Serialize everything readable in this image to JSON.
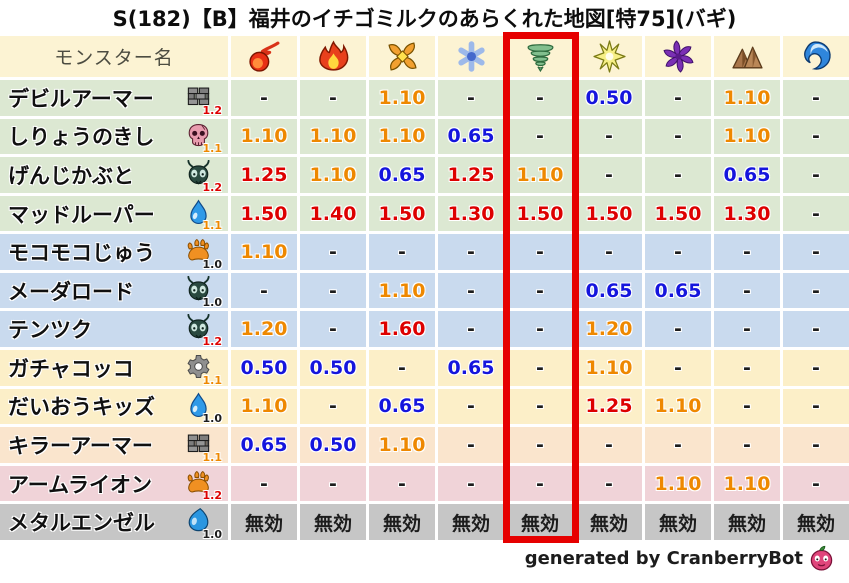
{
  "title": "S(182)【B】福井のイチゴミルクのあらくれた地図[特75](バギ)",
  "header": {
    "name_column": "モンスター名",
    "element_icons": [
      "fireball-icon",
      "flame-icon",
      "explosion-icon",
      "snowflake-icon",
      "tornado-icon",
      "spark-icon",
      "pinwheel-icon",
      "mountain-icon",
      "wave-icon"
    ],
    "highlight_column_index": 4,
    "highlight_color": "#e60000"
  },
  "palette": {
    "black": "#1c1c1c",
    "orange": "#ee8800",
    "red": "#dd0000",
    "blue": "#1515dd"
  },
  "row_backgrounds": {
    "header": "#fcf3d3",
    "green": "#dce8d2",
    "blue": "#c9daee",
    "cream": "#fcefc8",
    "peach": "#fae5cd",
    "pink": "#f0d3d8",
    "gray": "#c6c6c6"
  },
  "rows": [
    {
      "name": "デビルアーマー",
      "family_icon": "brick-icon",
      "rank": "1.2",
      "rank_color": "red",
      "bg": "green",
      "values": [
        "-",
        "-",
        "1.10",
        "-",
        "-",
        "0.50",
        "-",
        "1.10",
        "-"
      ],
      "value_colors": [
        "black",
        "black",
        "orange",
        "black",
        "black",
        "blue",
        "black",
        "orange",
        "black"
      ]
    },
    {
      "name": "しりょうのきし",
      "family_icon": "skull-icon",
      "rank": "1.1",
      "rank_color": "orange",
      "bg": "green",
      "values": [
        "1.10",
        "1.10",
        "1.10",
        "0.65",
        "-",
        "-",
        "-",
        "1.10",
        "-"
      ],
      "value_colors": [
        "orange",
        "orange",
        "orange",
        "blue",
        "black",
        "black",
        "black",
        "orange",
        "black"
      ]
    },
    {
      "name": "げんじかぶと",
      "family_icon": "bug-icon",
      "rank": "1.2",
      "rank_color": "red",
      "bg": "green",
      "values": [
        "1.25",
        "1.10",
        "0.65",
        "1.25",
        "1.10",
        "-",
        "-",
        "0.65",
        "-"
      ],
      "value_colors": [
        "red",
        "orange",
        "blue",
        "red",
        "orange",
        "black",
        "black",
        "blue",
        "black"
      ]
    },
    {
      "name": "マッドルーパー",
      "family_icon": "drop-icon",
      "rank": "1.1",
      "rank_color": "orange",
      "bg": "green",
      "values": [
        "1.50",
        "1.40",
        "1.50",
        "1.30",
        "1.50",
        "1.50",
        "1.50",
        "1.30",
        "-"
      ],
      "value_colors": [
        "red",
        "red",
        "red",
        "red",
        "red",
        "red",
        "red",
        "red",
        "black"
      ]
    },
    {
      "name": "モコモコじゅう",
      "family_icon": "paw-icon",
      "rank": "1.0",
      "rank_color": "black",
      "bg": "blue",
      "values": [
        "1.10",
        "-",
        "-",
        "-",
        "-",
        "-",
        "-",
        "-",
        "-"
      ],
      "value_colors": [
        "orange",
        "black",
        "black",
        "black",
        "black",
        "black",
        "black",
        "black",
        "black"
      ]
    },
    {
      "name": "メーダロード",
      "family_icon": "bug-icon",
      "rank": "1.0",
      "rank_color": "black",
      "bg": "blue",
      "values": [
        "-",
        "-",
        "1.10",
        "-",
        "-",
        "0.65",
        "0.65",
        "-",
        "-"
      ],
      "value_colors": [
        "black",
        "black",
        "orange",
        "black",
        "black",
        "blue",
        "blue",
        "black",
        "black"
      ]
    },
    {
      "name": "テンツク",
      "family_icon": "bug-icon",
      "rank": "1.2",
      "rank_color": "red",
      "bg": "blue",
      "values": [
        "1.20",
        "-",
        "1.60",
        "-",
        "-",
        "1.20",
        "-",
        "-",
        "-"
      ],
      "value_colors": [
        "orange",
        "black",
        "red",
        "black",
        "black",
        "orange",
        "black",
        "black",
        "black"
      ]
    },
    {
      "name": "ガチャコッコ",
      "family_icon": "gear-icon",
      "rank": "1.1",
      "rank_color": "orange",
      "bg": "cream",
      "values": [
        "0.50",
        "0.50",
        "-",
        "0.65",
        "-",
        "1.10",
        "-",
        "-",
        "-"
      ],
      "value_colors": [
        "blue",
        "blue",
        "black",
        "blue",
        "black",
        "orange",
        "black",
        "black",
        "black"
      ]
    },
    {
      "name": "だいおうキッズ",
      "family_icon": "drop-icon",
      "rank": "1.0",
      "rank_color": "black",
      "bg": "cream",
      "values": [
        "1.10",
        "-",
        "0.65",
        "-",
        "-",
        "1.25",
        "1.10",
        "-",
        "-"
      ],
      "value_colors": [
        "orange",
        "black",
        "blue",
        "black",
        "black",
        "red",
        "orange",
        "black",
        "black"
      ]
    },
    {
      "name": "キラーアーマー",
      "family_icon": "brick-icon",
      "rank": "1.1",
      "rank_color": "orange",
      "bg": "peach",
      "values": [
        "0.65",
        "0.50",
        "1.10",
        "-",
        "-",
        "-",
        "-",
        "-",
        "-"
      ],
      "value_colors": [
        "blue",
        "blue",
        "orange",
        "black",
        "black",
        "black",
        "black",
        "black",
        "black"
      ]
    },
    {
      "name": "アームライオン",
      "family_icon": "paw-icon",
      "rank": "1.2",
      "rank_color": "red",
      "bg": "pink",
      "values": [
        "-",
        "-",
        "-",
        "-",
        "-",
        "-",
        "1.10",
        "1.10",
        "-"
      ],
      "value_colors": [
        "black",
        "black",
        "black",
        "black",
        "black",
        "black",
        "orange",
        "orange",
        "black"
      ]
    },
    {
      "name": "メタルエンゼル",
      "family_icon": "slime-icon",
      "rank": "1.0",
      "rank_color": "black",
      "bg": "gray",
      "values": [
        "無効",
        "無効",
        "無効",
        "無効",
        "無効",
        "無効",
        "無効",
        "無効",
        "無効"
      ],
      "value_colors": [
        "black",
        "black",
        "black",
        "black",
        "black",
        "black",
        "black",
        "black",
        "black"
      ]
    }
  ],
  "footer": {
    "text": "generated by CranberryBot",
    "icon": "cranberry-icon"
  }
}
